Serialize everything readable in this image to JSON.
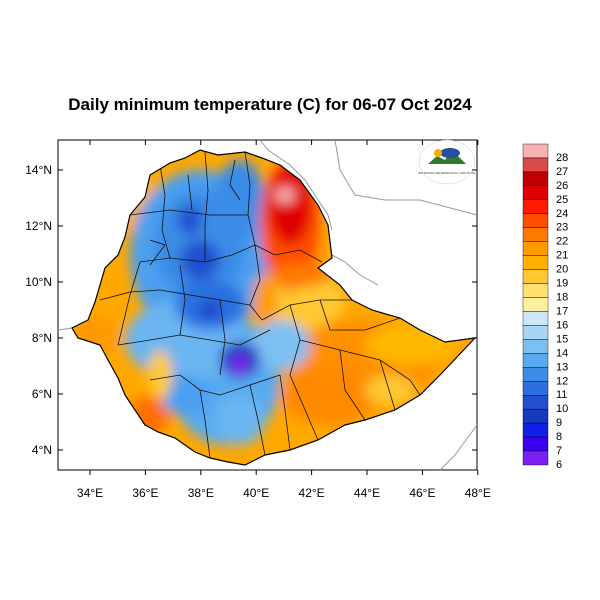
{
  "title": "Daily minimum temperature (C) for 06-07 Oct 2024",
  "axes": {
    "x_ticks": [
      "34°E",
      "36°E",
      "38°E",
      "40°E",
      "42°E",
      "44°E",
      "46°E",
      "48°E"
    ],
    "y_ticks": [
      "14°N",
      "12°N",
      "10°N",
      "8°N",
      "6°N",
      "4°N"
    ],
    "lon_range": [
      33,
      48.2
    ],
    "lat_range": [
      3.2,
      15
    ]
  },
  "colorbar": {
    "labels": [
      "28",
      "27",
      "26",
      "25",
      "24",
      "23",
      "22",
      "21",
      "20",
      "19",
      "18",
      "17",
      "16",
      "15",
      "14",
      "13",
      "12",
      "11",
      "10",
      "9",
      "8",
      "7",
      "6"
    ],
    "colors": [
      "#f7b3b3",
      "#d84a4a",
      "#c00000",
      "#e00000",
      "#ff1a00",
      "#ff4d00",
      "#ff7a00",
      "#ff9900",
      "#ffb000",
      "#ffc830",
      "#ffe070",
      "#fff0a0",
      "#cde6f7",
      "#a8d4f5",
      "#7cc0f2",
      "#58aaf0",
      "#3a8ce6",
      "#2b6fe0",
      "#2050d0",
      "#1838c0",
      "#1020e8",
      "#3a00f0",
      "#7a20f0"
    ]
  },
  "logo": {
    "caption": "ETHIOPIAN METEOROLOGY INSTITUTE"
  }
}
